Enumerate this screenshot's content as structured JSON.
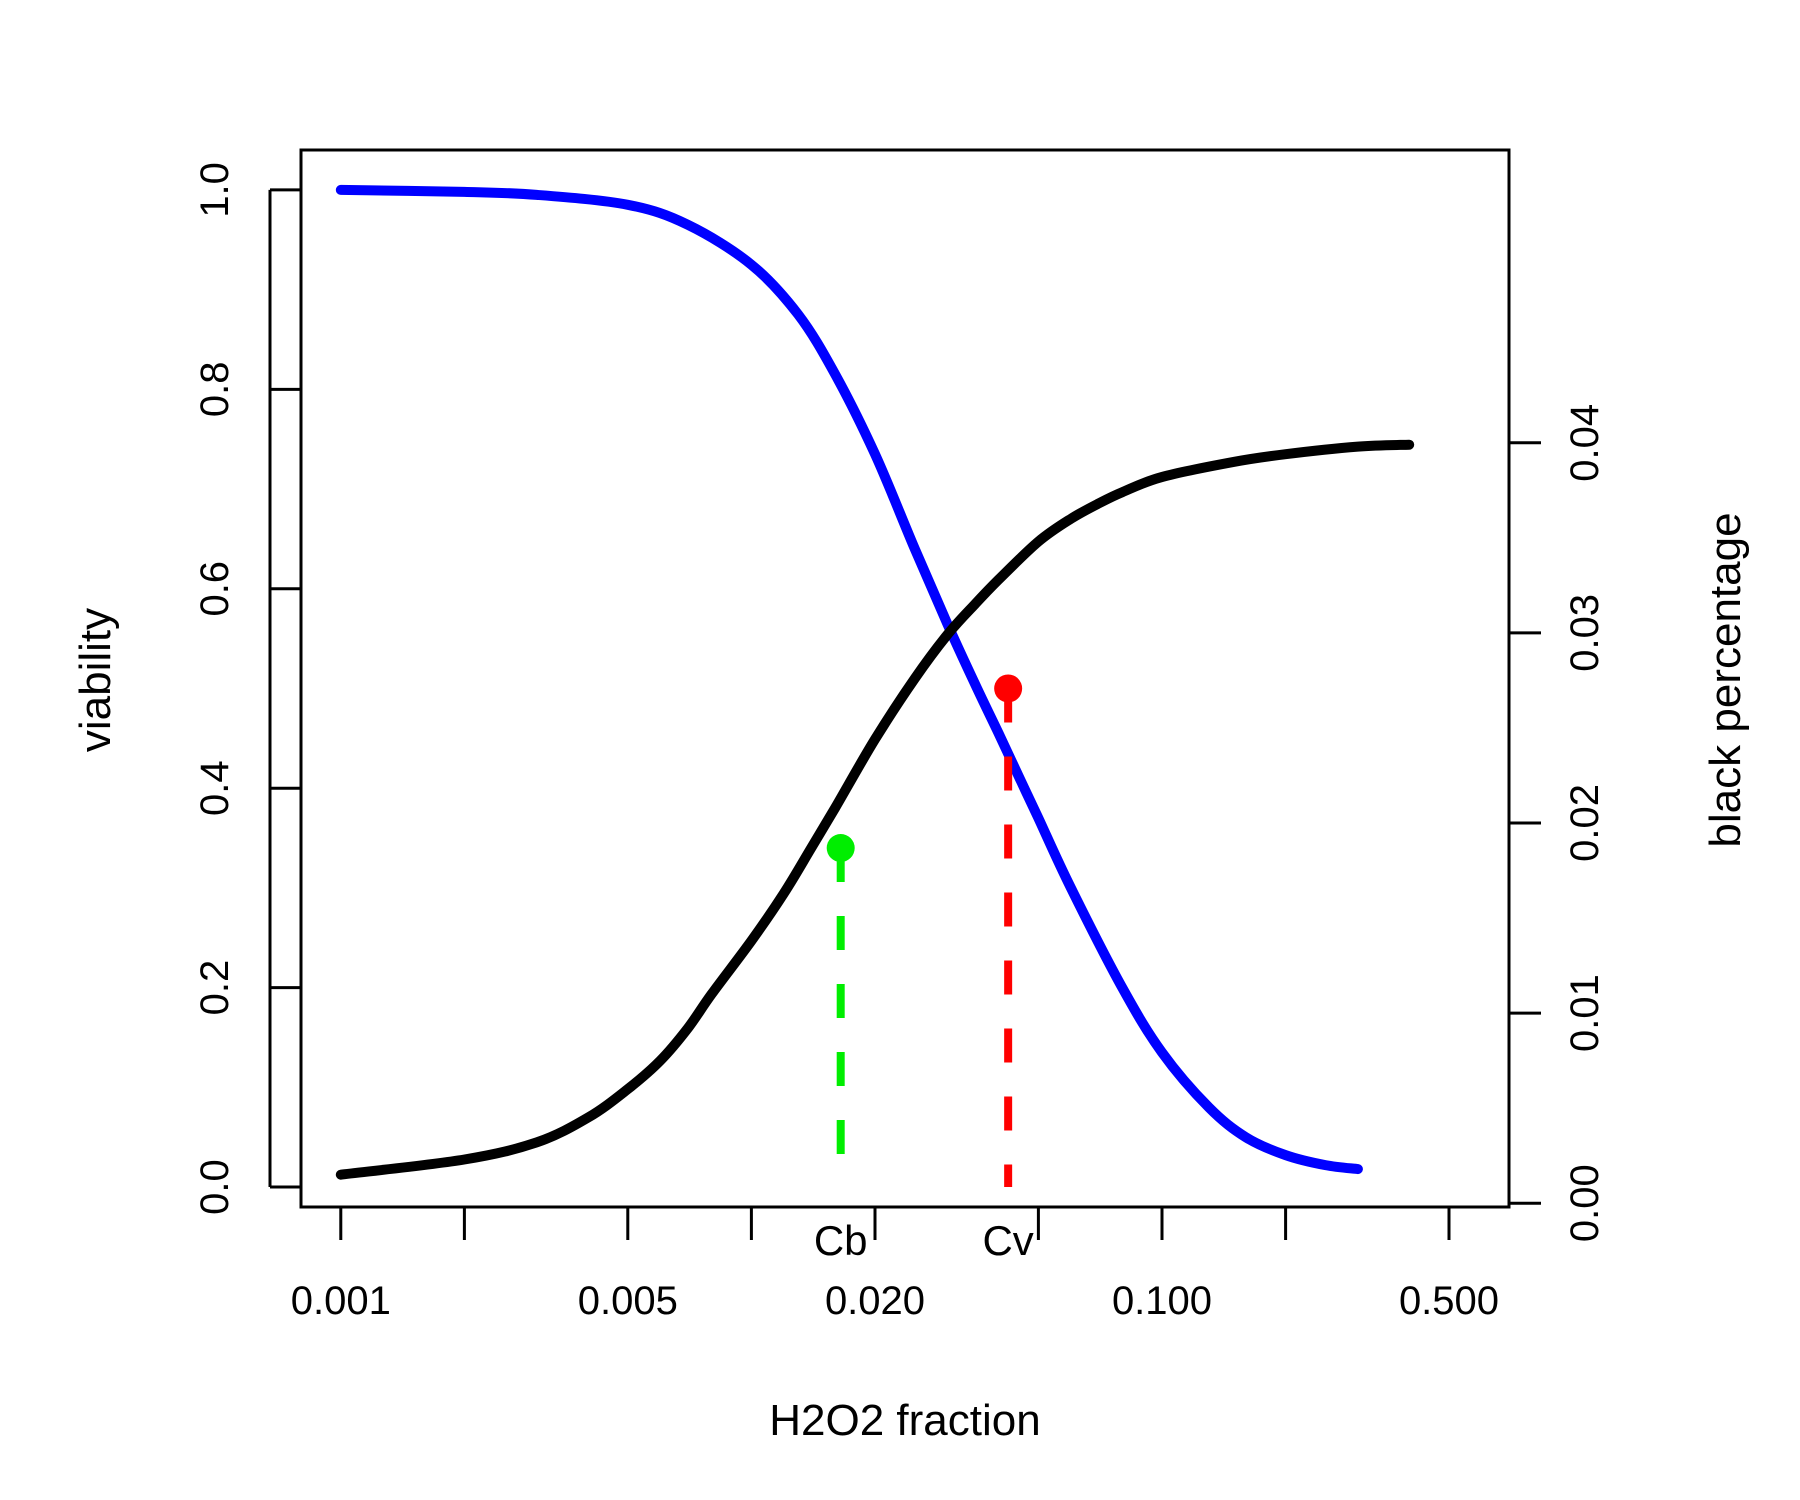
{
  "chart_data": {
    "type": "line",
    "title": "",
    "xlabel": "H2O2 fraction",
    "ylabel": "viability",
    "y2label": "black percentage",
    "x_scale": "log",
    "xlim": [
      0.0008,
      0.7
    ],
    "ylim": [
      -0.02,
      1.04
    ],
    "y2lim": [
      -0.0002,
      0.0554
    ],
    "x_ticks": [
      0.001,
      0.002,
      0.005,
      0.01,
      0.02,
      0.05,
      0.1,
      0.2,
      0.5
    ],
    "x_tick_labels": [
      "0.001",
      "",
      "0.005",
      "",
      "0.020",
      "",
      "0.100",
      "",
      "0.500"
    ],
    "y_ticks": [
      0.0,
      0.2,
      0.4,
      0.6,
      0.8,
      1.0
    ],
    "y_tick_labels": [
      "0.0",
      "0.2",
      "0.4",
      "0.6",
      "0.8",
      "1.0"
    ],
    "y2_ticks": [
      0.0,
      0.01,
      0.02,
      0.03,
      0.04
    ],
    "y2_tick_labels": [
      "0.00",
      "0.01",
      "0.02",
      "0.03",
      "0.04"
    ],
    "grid": false,
    "legend": "none",
    "series": [
      {
        "axis": "left",
        "color": "#0000ff",
        "x": [
          0.001,
          0.002,
          0.003,
          0.005,
          0.007,
          0.01,
          0.013,
          0.016,
          0.02,
          0.025,
          0.03,
          0.035,
          0.04,
          0.045,
          0.05,
          0.06,
          0.08,
          0.1,
          0.13,
          0.16,
          0.2,
          0.25,
          0.3
        ],
        "y": [
          1.0,
          0.998,
          0.995,
          0.985,
          0.965,
          0.925,
          0.875,
          0.815,
          0.735,
          0.64,
          0.565,
          0.505,
          0.455,
          0.41,
          0.37,
          0.3,
          0.2,
          0.135,
          0.08,
          0.05,
          0.032,
          0.022,
          0.018
        ]
      },
      {
        "axis": "right",
        "color": "#000000",
        "x": [
          0.001,
          0.002,
          0.003,
          0.004,
          0.005,
          0.006,
          0.007,
          0.008,
          0.01,
          0.012,
          0.014,
          0.016,
          0.02,
          0.025,
          0.03,
          0.035,
          0.04,
          0.05,
          0.06,
          0.07,
          0.08,
          0.1,
          0.15,
          0.2,
          0.3,
          0.4
        ],
        "y": [
          0.0015,
          0.0023,
          0.0032,
          0.0045,
          0.006,
          0.0075,
          0.0092,
          0.011,
          0.0138,
          0.0163,
          0.0187,
          0.0208,
          0.0244,
          0.0276,
          0.0299,
          0.0315,
          0.0328,
          0.0348,
          0.036,
          0.0368,
          0.0374,
          0.0382,
          0.039,
          0.0394,
          0.0398,
          0.0399
        ]
      }
    ],
    "markers": [
      {
        "label": "Cb",
        "x": 0.0165,
        "y": 0.34,
        "axis": "left",
        "color": "#00ee00"
      },
      {
        "label": "Cv",
        "x": 0.0422,
        "y": 0.5,
        "axis": "left",
        "color": "#ff0000"
      }
    ]
  }
}
